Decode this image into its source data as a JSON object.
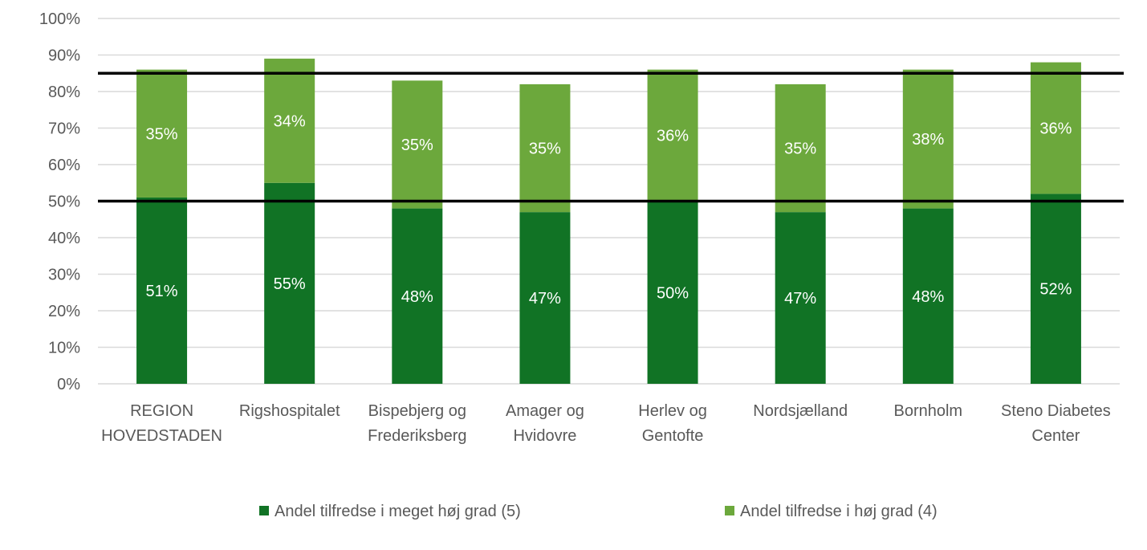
{
  "chart_data": {
    "type": "bar",
    "stacked": true,
    "categories": [
      [
        "REGION",
        "HOVEDSTADEN"
      ],
      [
        "Rigshospitalet"
      ],
      [
        "Bispebjerg og",
        "Frederiksberg"
      ],
      [
        "Amager og",
        "Hvidovre"
      ],
      [
        "Herlev og",
        "Gentofte"
      ],
      [
        "Nordsjælland"
      ],
      [
        "Bornholm"
      ],
      [
        "Steno Diabetes",
        "Center"
      ]
    ],
    "series": [
      {
        "name": "Andel tilfredse i meget høj grad (5)",
        "color": "#117325",
        "values": [
          51,
          55,
          48,
          47,
          50,
          47,
          48,
          52
        ],
        "labels": [
          "51%",
          "55%",
          "48%",
          "47%",
          "50%",
          "47%",
          "48%",
          "52%"
        ]
      },
      {
        "name": "Andel tilfredse i høj grad (4)",
        "color": "#6ca83c",
        "values": [
          35,
          34,
          35,
          35,
          36,
          35,
          38,
          36
        ],
        "labels": [
          "35%",
          "34%",
          "35%",
          "35%",
          "36%",
          "35%",
          "38%",
          "36%"
        ]
      }
    ],
    "y_ticks": [
      "0%",
      "10%",
      "20%",
      "30%",
      "40%",
      "50%",
      "60%",
      "70%",
      "80%",
      "90%",
      "100%"
    ],
    "ylim": [
      0,
      100
    ],
    "reference_lines": [
      50,
      85
    ],
    "grid": true,
    "legend_position": "bottom"
  }
}
